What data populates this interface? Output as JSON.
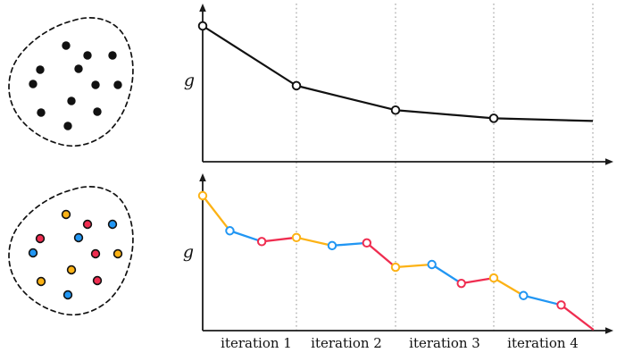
{
  "colors": {
    "yellow": "#FCB215",
    "red": "#EF2D50",
    "blue": "#2196F3",
    "black": "#111111",
    "grid": "#ABABAB",
    "axis": "#1A1A1A"
  },
  "chart_data": [
    {
      "id": "top",
      "type": "line",
      "title": "",
      "ylabel": "g",
      "xlabel": "",
      "x_gridlines": [
        1,
        2,
        3,
        4
      ],
      "x_tick_labels": [],
      "ylim": [
        0,
        1.1
      ],
      "series": [
        {
          "name": "g",
          "color": "black",
          "marker": "open-circle",
          "marker_on_last_point": false,
          "points": [
            [
              0,
              1.0
            ],
            [
              1,
              0.56
            ],
            [
              2,
              0.38
            ],
            [
              3,
              0.32
            ],
            [
              4,
              0.3
            ]
          ]
        }
      ]
    },
    {
      "id": "bottom",
      "type": "line",
      "title": "",
      "ylabel": "g",
      "xlabel": "",
      "x_gridlines": [
        1,
        2,
        3,
        4
      ],
      "x_tick_labels": [
        "iteration 1",
        "iteration 2",
        "iteration 3",
        "iteration 4"
      ],
      "ylim": [
        0,
        1.1
      ],
      "marker": "open-circle",
      "points": [
        {
          "x": 0.0,
          "g": 1.0,
          "color": "yellow"
        },
        {
          "x": 0.29,
          "g": 0.74,
          "color": "blue"
        },
        {
          "x": 0.63,
          "g": 0.66,
          "color": "red"
        },
        {
          "x": 1.0,
          "g": 0.69,
          "color": "yellow"
        },
        {
          "x": 1.36,
          "g": 0.63,
          "color": "blue"
        },
        {
          "x": 1.71,
          "g": 0.65,
          "color": "red"
        },
        {
          "x": 2.0,
          "g": 0.47,
          "color": "yellow"
        },
        {
          "x": 2.37,
          "g": 0.49,
          "color": "blue"
        },
        {
          "x": 2.67,
          "g": 0.35,
          "color": "red"
        },
        {
          "x": 3.0,
          "g": 0.39,
          "color": "yellow"
        },
        {
          "x": 3.3,
          "g": 0.26,
          "color": "blue"
        },
        {
          "x": 3.68,
          "g": 0.19,
          "color": "red"
        },
        {
          "x": 4.0,
          "g": 0.01,
          "color": null
        }
      ]
    }
  ],
  "clusters": {
    "dot_positions": [
      [
        74,
        51
      ],
      [
        98,
        62
      ],
      [
        126,
        62
      ],
      [
        88,
        77
      ],
      [
        45,
        78
      ],
      [
        37,
        94
      ],
      [
        107,
        95
      ],
      [
        132,
        95
      ],
      [
        80,
        113
      ],
      [
        46,
        126
      ],
      [
        109,
        125
      ],
      [
        76,
        141
      ]
    ],
    "top_dot_color": "black",
    "bottom_dot_colors": [
      "yellow",
      "red",
      "blue",
      "blue",
      "red",
      "blue",
      "red",
      "yellow",
      "yellow",
      "yellow",
      "red",
      "blue"
    ]
  }
}
